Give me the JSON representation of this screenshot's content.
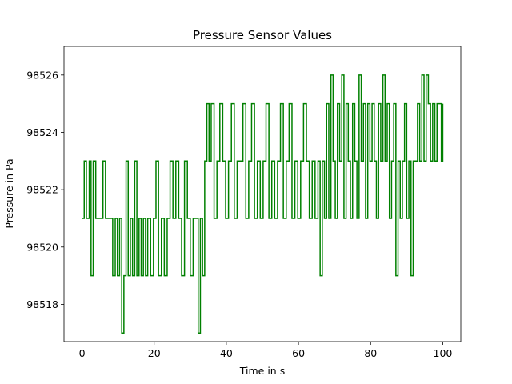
{
  "chart_data": {
    "type": "line",
    "title": "Pressure Sensor Values",
    "xlabel": "Time in s",
    "ylabel": "Pressure in Pa",
    "xlim": [
      -5,
      105
    ],
    "ylim": [
      98516.7,
      98527.0
    ],
    "xticks": [
      0,
      20,
      40,
      60,
      80,
      100
    ],
    "yticks": [
      98518,
      98520,
      98522,
      98524,
      98526
    ],
    "grid": false,
    "line_color": "#008000",
    "series": [
      {
        "x": [
          0,
          0.6,
          1.2,
          2.0,
          2.5,
          3.1,
          3.8,
          4.5,
          5.2,
          5.8,
          6.5,
          7.5,
          8.5,
          9.2,
          9.8,
          10.4,
          11.0,
          11.6,
          12.2,
          12.8,
          13.4,
          14.0,
          14.6,
          15.2,
          15.8,
          16.4,
          17.0,
          17.6,
          18.2,
          19.0,
          19.8,
          20.5,
          21.2,
          22.0,
          22.8,
          23.6,
          24.4,
          25.2,
          26.0,
          26.8,
          27.6,
          28.4,
          29.2,
          30.0,
          30.8,
          31.6,
          32.2,
          32.8,
          33.4,
          34.0,
          34.6,
          35.2,
          35.8,
          36.6,
          37.4,
          38.2,
          39.0,
          39.8,
          40.6,
          41.4,
          42.2,
          43.0,
          43.8,
          44.6,
          45.4,
          46.2,
          47.0,
          47.8,
          48.6,
          49.4,
          50.2,
          51.0,
          51.8,
          52.6,
          53.4,
          54.2,
          55.0,
          55.8,
          56.6,
          57.4,
          58.2,
          59.0,
          59.8,
          60.6,
          61.4,
          62.2,
          63.0,
          63.8,
          64.6,
          65.4,
          66.0,
          66.6,
          67.2,
          67.8,
          68.4,
          69.0,
          69.6,
          70.2,
          70.8,
          71.4,
          72.0,
          72.6,
          73.2,
          73.8,
          74.4,
          75.0,
          75.6,
          76.2,
          76.8,
          77.4,
          78.0,
          78.6,
          79.2,
          79.8,
          80.4,
          81.0,
          81.6,
          82.2,
          82.8,
          83.4,
          84.0,
          84.6,
          85.2,
          85.8,
          86.4,
          87.0,
          87.6,
          88.2,
          88.8,
          89.4,
          90.0,
          90.6,
          91.2,
          91.8,
          92.4,
          93.0,
          93.6,
          94.2,
          94.8,
          95.4,
          96.0,
          96.6,
          97.2,
          97.8,
          98.4,
          99.0,
          99.6,
          100.0
        ],
        "values": [
          98521,
          98523,
          98521,
          98523,
          98519,
          98523,
          98521,
          98521,
          98521,
          98523,
          98521,
          98521,
          98519,
          98521,
          98519,
          98521,
          98517,
          98519,
          98523,
          98519,
          98521,
          98519,
          98523,
          98519,
          98521,
          98519,
          98521,
          98519,
          98521,
          98519,
          98521,
          98523,
          98519,
          98521,
          98519,
          98521,
          98523,
          98521,
          98523,
          98521,
          98519,
          98523,
          98521,
          98519,
          98521,
          98521,
          98517,
          98521,
          98519,
          98523,
          98525,
          98523,
          98525,
          98521,
          98523,
          98525,
          98523,
          98521,
          98523,
          98525,
          98521,
          98523,
          98523,
          98525,
          98521,
          98523,
          98525,
          98521,
          98523,
          98521,
          98523,
          98525,
          98521,
          98523,
          98521,
          98523,
          98525,
          98521,
          98523,
          98525,
          98521,
          98523,
          98521,
          98523,
          98525,
          98523,
          98521,
          98523,
          98521,
          98523,
          98519,
          98523,
          98521,
          98525,
          98521,
          98526,
          98523,
          98521,
          98525,
          98523,
          98526,
          98521,
          98525,
          98523,
          98521,
          98525,
          98523,
          98521,
          98526,
          98523,
          98525,
          98521,
          98525,
          98523,
          98525,
          98523,
          98521,
          98525,
          98523,
          98526,
          98523,
          98525,
          98521,
          98523,
          98525,
          98519,
          98523,
          98521,
          98523,
          98525,
          98521,
          98523,
          98519,
          98523,
          98523,
          98525,
          98523,
          98526,
          98523,
          98526,
          98525,
          98523,
          98525,
          98523,
          98525,
          98525,
          98523,
          98525
        ]
      }
    ]
  }
}
